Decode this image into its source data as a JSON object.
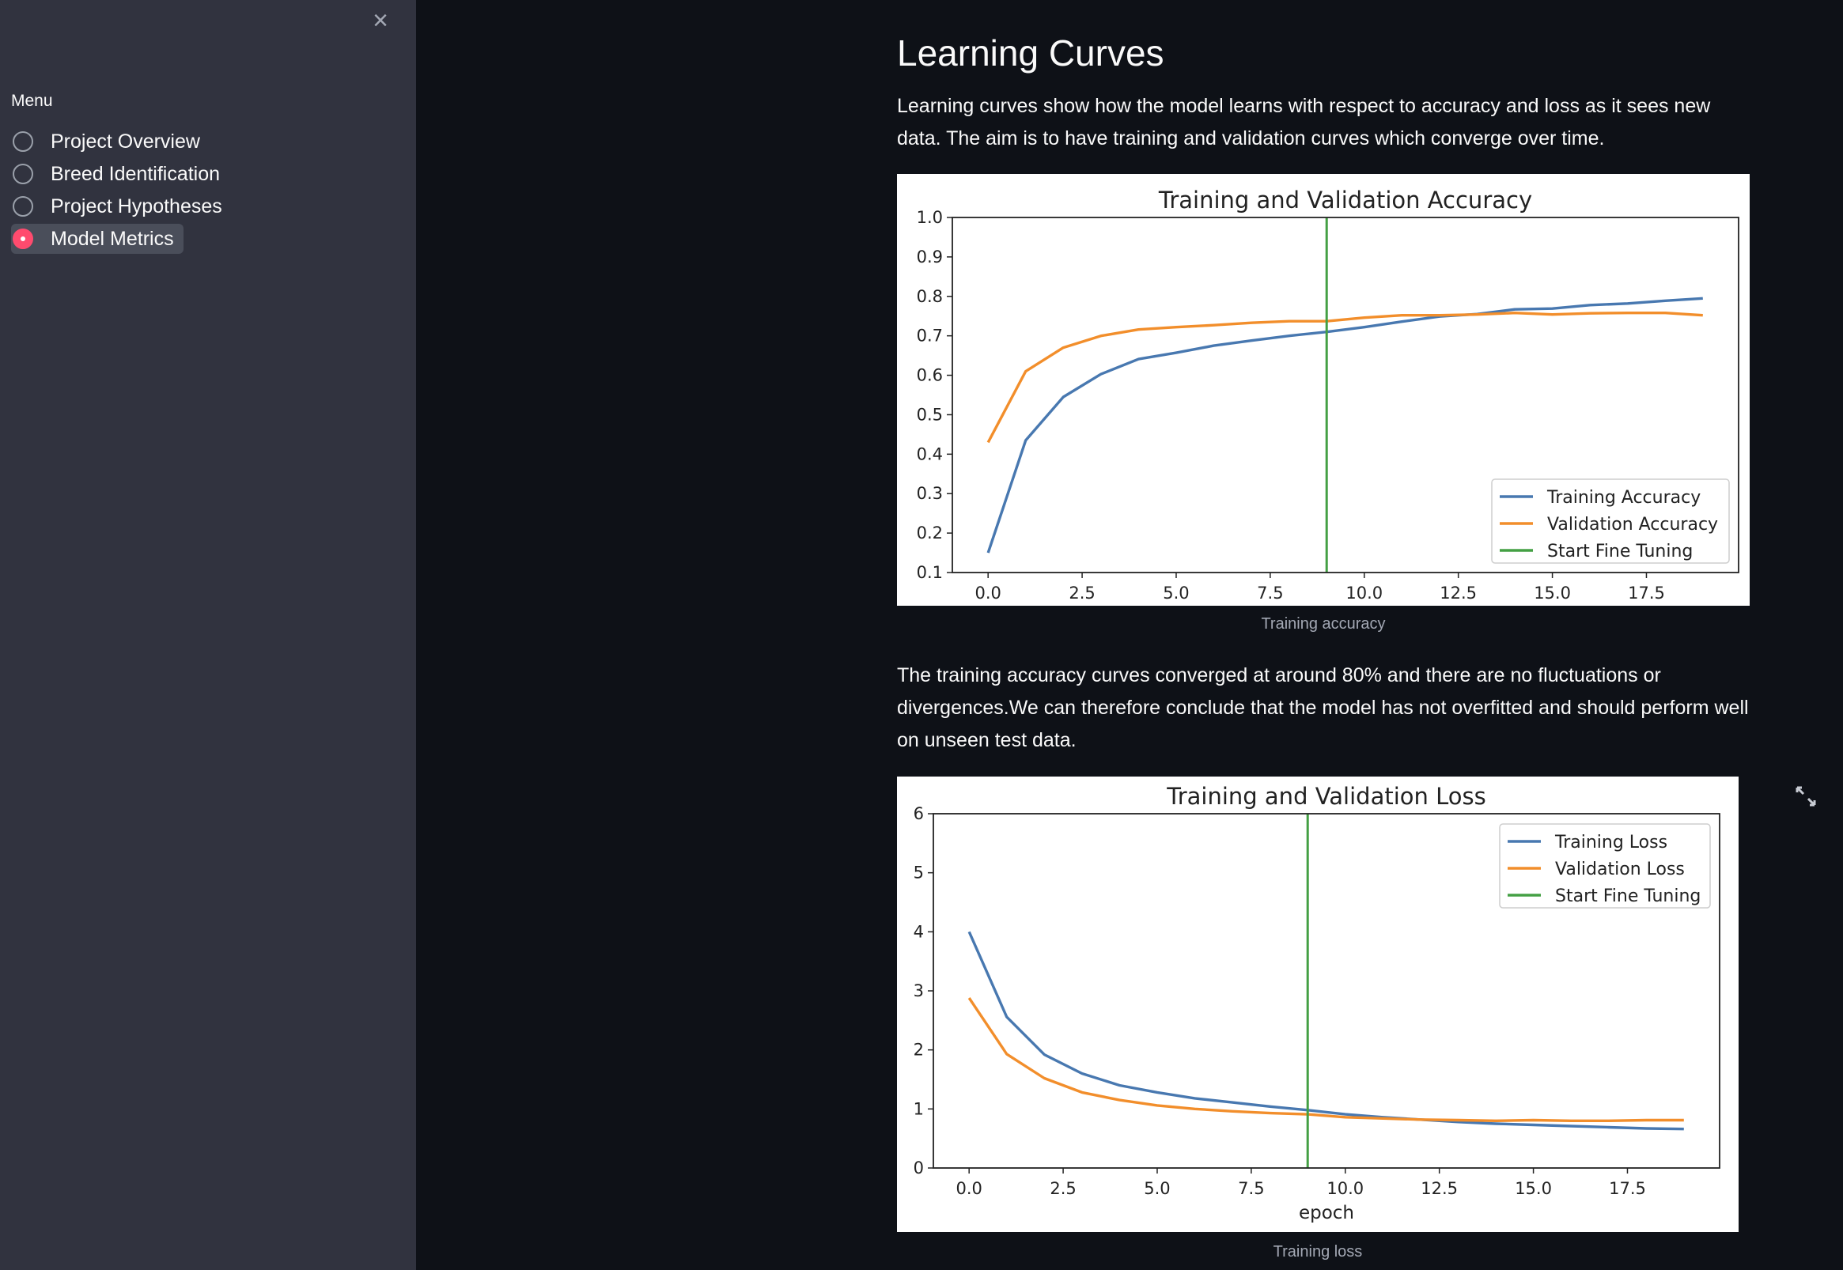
{
  "sidebar": {
    "close_label": "×",
    "menu_label": "Menu",
    "items": [
      {
        "label": "Project Overview",
        "selected": false
      },
      {
        "label": "Breed Identification",
        "selected": false
      },
      {
        "label": "Project Hypotheses",
        "selected": false
      },
      {
        "label": "Model Metrics",
        "selected": true
      }
    ],
    "accent_color": "#ff4b6e"
  },
  "main": {
    "title": "Learning Curves",
    "intro": "Learning curves show how the model learns with respect to accuracy and loss as it sees new data. The aim is to have training and validation curves which converge over time.",
    "accuracy_caption": "Training accuracy",
    "conclusion": "The training accuracy curves converged at around 80% and there are no fluctuations or divergences.We can therefore conclude that the model has not overfitted and should perform well on unseen test data.",
    "loss_caption": "Training loss"
  },
  "chart_data": [
    {
      "type": "line",
      "title": "Training and Validation Accuracy",
      "xlabel": "",
      "ylabel": "",
      "xlim": [
        -0.95,
        19.95
      ],
      "ylim": [
        0.1,
        1.0
      ],
      "xticks": [
        "0.0",
        "2.5",
        "5.0",
        "7.5",
        "10.0",
        "12.5",
        "15.0",
        "17.5"
      ],
      "yticks": [
        "0.1",
        "0.2",
        "0.3",
        "0.4",
        "0.5",
        "0.6",
        "0.7",
        "0.8",
        "0.9",
        "1.0"
      ],
      "x": [
        0,
        1,
        2,
        3,
        4,
        5,
        6,
        7,
        8,
        9,
        10,
        11,
        12,
        13,
        14,
        15,
        16,
        17,
        18,
        19
      ],
      "series": [
        {
          "name": "Training Accuracy",
          "color": "#4878b0",
          "values": [
            0.15,
            0.435,
            0.545,
            0.603,
            0.641,
            0.657,
            0.675,
            0.688,
            0.7,
            0.71,
            0.722,
            0.736,
            0.749,
            0.755,
            0.767,
            0.769,
            0.778,
            0.782,
            0.789,
            0.795
          ]
        },
        {
          "name": "Validation Accuracy",
          "color": "#f28e2b",
          "values": [
            0.43,
            0.61,
            0.67,
            0.7,
            0.716,
            0.722,
            0.727,
            0.733,
            0.737,
            0.737,
            0.746,
            0.752,
            0.752,
            0.754,
            0.758,
            0.754,
            0.757,
            0.758,
            0.758,
            0.752
          ]
        },
        {
          "name": "Start Fine Tuning",
          "color": "#44a044",
          "vline": 9
        }
      ],
      "legend": "lower-right",
      "grid": false
    },
    {
      "type": "line",
      "title": "Training and Validation Loss",
      "xlabel": "epoch",
      "ylabel": "",
      "xlim": [
        -0.95,
        19.95
      ],
      "ylim": [
        0,
        6
      ],
      "xticks": [
        "0.0",
        "2.5",
        "5.0",
        "7.5",
        "10.0",
        "12.5",
        "15.0",
        "17.5"
      ],
      "yticks": [
        "0",
        "1",
        "2",
        "3",
        "4",
        "5",
        "6"
      ],
      "x": [
        0,
        1,
        2,
        3,
        4,
        5,
        6,
        7,
        8,
        9,
        10,
        11,
        12,
        13,
        14,
        15,
        16,
        17,
        18,
        19
      ],
      "series": [
        {
          "name": "Training Loss",
          "color": "#4878b0",
          "values": [
            4.0,
            2.56,
            1.92,
            1.6,
            1.4,
            1.28,
            1.18,
            1.11,
            1.04,
            0.98,
            0.91,
            0.86,
            0.82,
            0.78,
            0.75,
            0.73,
            0.71,
            0.69,
            0.67,
            0.66
          ]
        },
        {
          "name": "Validation Loss",
          "color": "#f28e2b",
          "values": [
            2.88,
            1.93,
            1.52,
            1.28,
            1.15,
            1.06,
            1.0,
            0.96,
            0.93,
            0.91,
            0.86,
            0.84,
            0.82,
            0.81,
            0.8,
            0.81,
            0.8,
            0.8,
            0.81,
            0.81
          ]
        },
        {
          "name": "Start Fine Tuning",
          "color": "#44a044",
          "vline": 9
        }
      ],
      "legend": "upper-right",
      "grid": false
    }
  ]
}
